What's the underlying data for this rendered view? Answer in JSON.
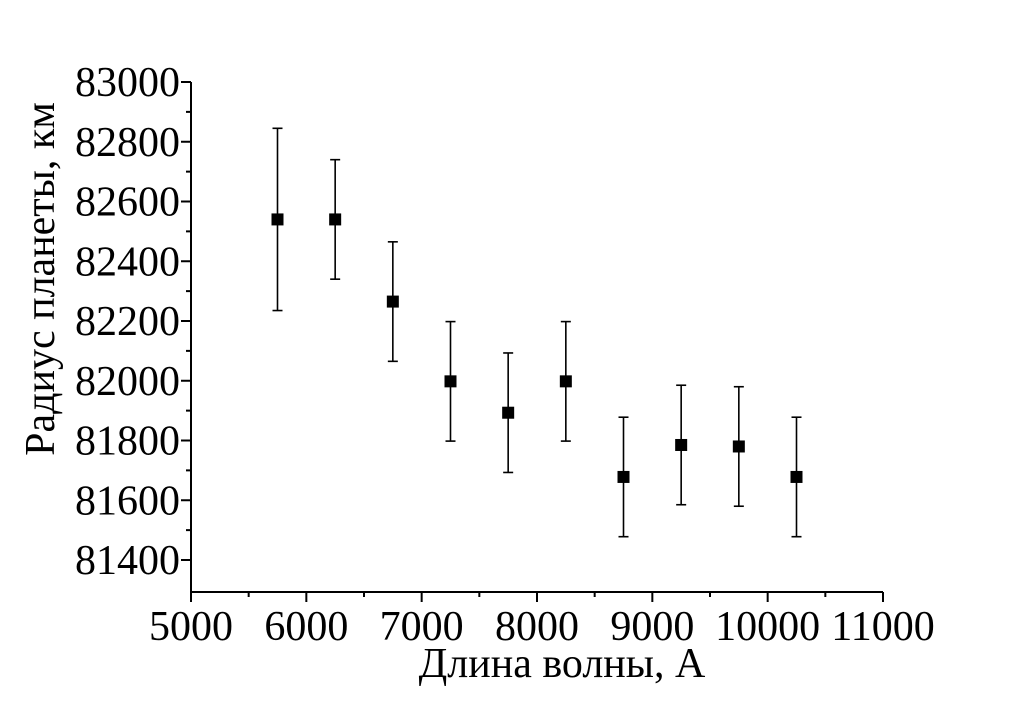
{
  "chart_data": {
    "type": "scatter",
    "title": "",
    "xlabel": "Длина волны, А",
    "ylabel": "Радиус планеты, км",
    "xlim": [
      5000,
      11000
    ],
    "ylim": [
      81300,
      83000
    ],
    "xticks": [
      5000,
      6000,
      7000,
      8000,
      9000,
      10000,
      11000
    ],
    "yticks": [
      81400,
      81600,
      81800,
      82000,
      82200,
      82400,
      82600,
      82800,
      83000
    ],
    "grid": false,
    "legend": "none",
    "marker": "square",
    "color": "#000000",
    "series": [
      {
        "x": [
          5750,
          6250,
          6750,
          7250,
          7750,
          8250,
          8750,
          9250,
          9750,
          10250
        ],
        "y": [
          82540,
          82540,
          82265,
          81998,
          81893,
          81998,
          81678,
          81785,
          81780,
          81678
        ],
        "err": [
          305,
          200,
          200,
          200,
          200,
          200,
          200,
          200,
          200,
          200
        ]
      }
    ]
  }
}
